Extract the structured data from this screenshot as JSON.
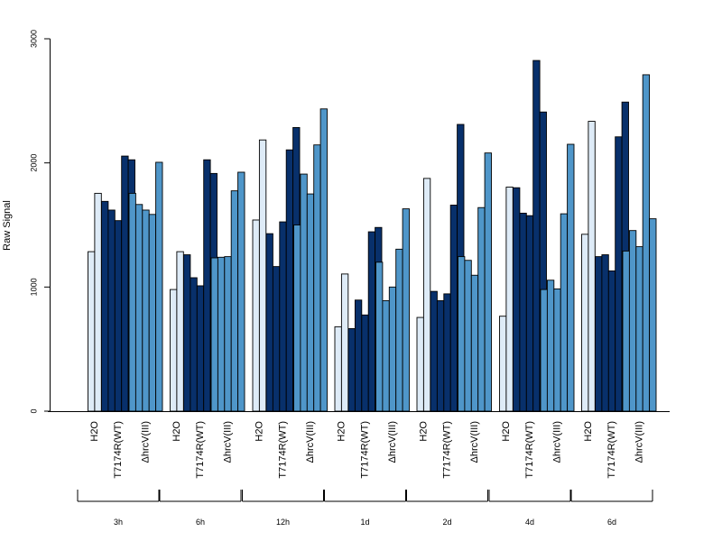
{
  "chart_data": {
    "type": "bar",
    "title": "",
    "xlabel": "",
    "ylabel": "Raw Signal",
    "ylim": [
      0,
      3000
    ],
    "yticks": [
      0,
      1000,
      2000,
      3000
    ],
    "grid": false,
    "legend": "none",
    "colors": {
      "H2O": "#deebf7",
      "T7174R(WT)": "#08306b",
      "ΔhrcV(III)": "#4f96c9"
    },
    "categories": [
      "H2O",
      "T7174R(WT)",
      "ΔhrcV(III)"
    ],
    "groups": [
      {
        "label": "3h",
        "bars": {
          "H2O": [
            1285,
            1755
          ],
          "T7174R(WT)": [
            1690,
            1620,
            1535,
            2055,
            2025
          ],
          "ΔhrcV(III)": [
            1755,
            1665,
            1620,
            1585,
            2005
          ]
        }
      },
      {
        "label": "6h",
        "bars": {
          "H2O": [
            980,
            1285
          ],
          "T7174R(WT)": [
            1260,
            1075,
            1010,
            2025,
            1915
          ],
          "ΔhrcV(III)": [
            1235,
            1240,
            1245,
            1775,
            1925
          ]
        }
      },
      {
        "label": "12h",
        "bars": {
          "H2O": [
            1540,
            2185
          ],
          "T7174R(WT)": [
            1430,
            1165,
            1525,
            2105,
            2285
          ],
          "ΔhrcV(III)": [
            1500,
            1910,
            1750,
            2145,
            2435
          ]
        }
      },
      {
        "label": "1d",
        "bars": {
          "H2O": [
            680,
            1105
          ],
          "T7174R(WT)": [
            665,
            895,
            775,
            1445,
            1480
          ],
          "ΔhrcV(III)": [
            1200,
            890,
            1000,
            1305,
            1630
          ]
        }
      },
      {
        "label": "2d",
        "bars": {
          "H2O": [
            755,
            1875
          ],
          "T7174R(WT)": [
            965,
            890,
            945,
            1660,
            2310
          ],
          "ΔhrcV(III)": [
            1245,
            1215,
            1095,
            1640,
            2080
          ]
        }
      },
      {
        "label": "4d",
        "bars": {
          "H2O": [
            765,
            1805
          ],
          "T7174R(WT)": [
            1800,
            1595,
            1575,
            2825,
            2410
          ],
          "ΔhrcV(III)": [
            980,
            1055,
            985,
            1590,
            2150
          ]
        }
      },
      {
        "label": "6d",
        "bars": {
          "H2O": [
            1425,
            2335
          ],
          "T7174R(WT)": [
            1245,
            1260,
            1130,
            2210,
            2490
          ],
          "ΔhrcV(III)": [
            1290,
            1455,
            1325,
            2710,
            1550
          ]
        }
      }
    ]
  }
}
